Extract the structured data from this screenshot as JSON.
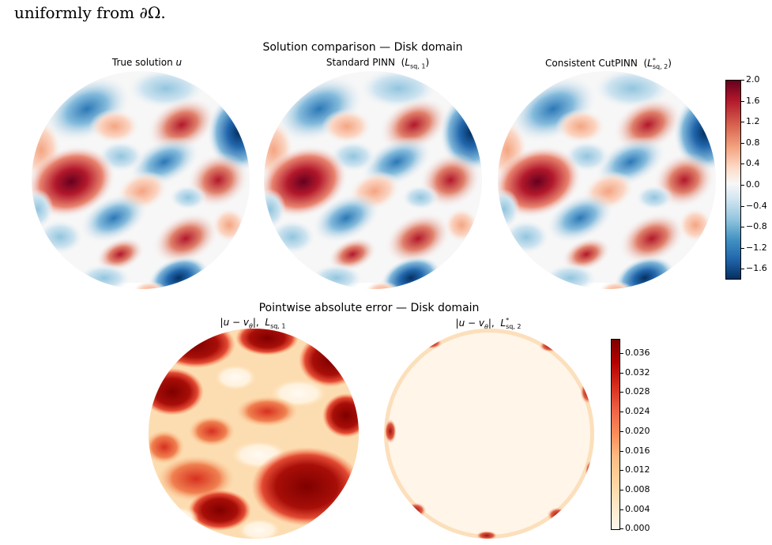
{
  "caption_line": "uniformly from ∂Ω.",
  "top_figure": {
    "title": "Solution comparison — Disk domain",
    "panels": [
      {
        "title": "True solution u"
      },
      {
        "title": "Standard PINN  (L_sq,1)"
      },
      {
        "title": "Consistent CutPINN  (L*_sq,2)"
      }
    ],
    "colorbar": {
      "colormap": "RdBu_r",
      "ticks": [
        "2.0",
        "1.6",
        "1.2",
        "0.8",
        "0.4",
        "0.0",
        "−0.4",
        "−0.8",
        "−1.2",
        "−1.6"
      ],
      "range": [
        -1.8,
        2.0
      ]
    }
  },
  "bottom_figure": {
    "title": "Pointwise absolute error — Disk domain",
    "panels": [
      {
        "title": "|u − v_θ|,  L_sq,1"
      },
      {
        "title": "|u − v_θ|,  L*_sq,2"
      }
    ],
    "colorbar": {
      "colormap": "OrRd",
      "ticks": [
        "0.036",
        "0.032",
        "0.028",
        "0.024",
        "0.020",
        "0.016",
        "0.012",
        "0.008",
        "0.004",
        "0.000"
      ],
      "range": [
        0.0,
        0.038
      ]
    }
  },
  "colors": {
    "red_dark": "#67001f",
    "red": "#d6604d",
    "white": "#f7f7f7",
    "blue": "#4393c3",
    "blue_dark": "#053061",
    "err_dark": "#7f0000",
    "err_mid": "#ef6548",
    "err_light": "#fdd49e",
    "err_min": "#fff7ec"
  }
}
